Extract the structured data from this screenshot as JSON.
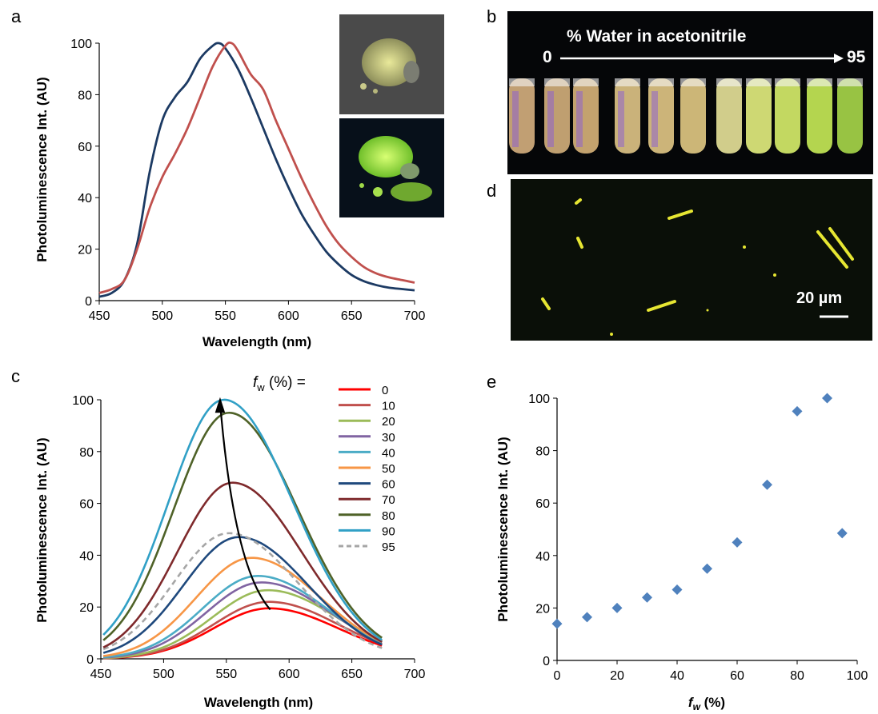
{
  "panels": {
    "a": "a",
    "b": "b",
    "c": "c",
    "d": "d",
    "e": "e"
  },
  "photo_b": {
    "title": "% Water in acetonitrile",
    "start": "0",
    "end": "95"
  },
  "photo_d": {
    "scale": "20 µm"
  },
  "chart_data": [
    {
      "panel": "a",
      "type": "line",
      "xlabel": "Wavelength  (nm)",
      "ylabel": "Photoluminescence Int.  (AU)",
      "xlim": [
        450,
        700
      ],
      "ylim": [
        0,
        100
      ],
      "xticks": [
        450,
        500,
        550,
        600,
        650,
        700
      ],
      "yticks": [
        0,
        20,
        40,
        60,
        80,
        100
      ],
      "series": [
        {
          "color": "#1c3a63",
          "x": [
            450,
            460,
            470,
            480,
            490,
            500,
            510,
            520,
            530,
            540,
            545,
            550,
            560,
            570,
            580,
            590,
            600,
            610,
            620,
            630,
            640,
            650,
            660,
            670,
            680,
            690,
            700
          ],
          "y": [
            1.5,
            3,
            8,
            22,
            50,
            70,
            79,
            85,
            94,
            99,
            100,
            98,
            90,
            79,
            67,
            55,
            44,
            34,
            26,
            19,
            14,
            10,
            7.5,
            6,
            5,
            4.5,
            4
          ]
        },
        {
          "color": "#c0504d",
          "x": [
            450,
            460,
            470,
            480,
            490,
            500,
            510,
            520,
            530,
            540,
            550,
            555,
            560,
            570,
            580,
            590,
            600,
            610,
            620,
            630,
            640,
            650,
            660,
            670,
            680,
            690,
            700
          ],
          "y": [
            3,
            4.5,
            8,
            20,
            36,
            48,
            57,
            67,
            79,
            91,
            99,
            100,
            97,
            88,
            82,
            70,
            59,
            48,
            38,
            29,
            22,
            17,
            13,
            10.5,
            9,
            8,
            7
          ]
        }
      ]
    },
    {
      "panel": "c",
      "type": "line",
      "xlabel": "Wavelength  (nm)",
      "ylabel": "Photoluminescence Int. (AU)",
      "legend_title": "f_w (%) =",
      "xlim": [
        450,
        700
      ],
      "ylim": [
        0,
        100
      ],
      "xticks": [
        450,
        500,
        550,
        600,
        650,
        700
      ],
      "yticks": [
        0,
        20,
        40,
        60,
        80,
        100
      ],
      "series": [
        {
          "name": "0",
          "color": "#ff0000",
          "peak": 584,
          "amp": 19.5
        },
        {
          "name": "10",
          "color": "#c0504d",
          "peak": 584,
          "amp": 22
        },
        {
          "name": "20",
          "color": "#9bbb59",
          "peak": 583,
          "amp": 26.5
        },
        {
          "name": "30",
          "color": "#8064a2",
          "peak": 578,
          "amp": 29.5
        },
        {
          "name": "40",
          "color": "#4bacc6",
          "peak": 575,
          "amp": 32
        },
        {
          "name": "50",
          "color": "#f79646",
          "peak": 570,
          "amp": 39
        },
        {
          "name": "60",
          "color": "#1f497d",
          "peak": 560,
          "amp": 47
        },
        {
          "name": "70",
          "color": "#7f2a2c",
          "peak": 555,
          "amp": 68
        },
        {
          "name": "80",
          "color": "#4f6228",
          "peak": 552,
          "amp": 95
        },
        {
          "name": "90",
          "color": "#31a0c6",
          "peak": 548,
          "amp": 100
        },
        {
          "name": "95",
          "color": "#a6a6a6",
          "peak": 552,
          "amp": 48.5,
          "dashed": true
        }
      ]
    },
    {
      "panel": "e",
      "type": "scatter",
      "xlabel": "f_w (%)",
      "ylabel": "Photoluminescence Int. (AU)",
      "xlim": [
        0,
        100
      ],
      "ylim": [
        0,
        100
      ],
      "xticks": [
        0,
        20,
        40,
        60,
        80,
        100
      ],
      "yticks": [
        0,
        20,
        40,
        60,
        80,
        100
      ],
      "color": "#4f81bd",
      "x": [
        0,
        10,
        20,
        30,
        40,
        50,
        60,
        70,
        80,
        90,
        95
      ],
      "y": [
        14,
        16.5,
        20,
        24,
        27,
        35,
        45,
        67,
        95,
        100,
        48.5
      ]
    }
  ]
}
